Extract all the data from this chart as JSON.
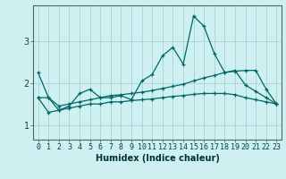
{
  "title": "",
  "xlabel": "Humidex (Indice chaleur)",
  "bg_color": "#cef0f0",
  "grid_color": "#aed8d8",
  "line_color": "#006666",
  "x_ticks": [
    0,
    1,
    2,
    3,
    4,
    5,
    6,
    7,
    8,
    9,
    10,
    11,
    12,
    13,
    14,
    15,
    16,
    17,
    18,
    19,
    20,
    21,
    22,
    23
  ],
  "y_ticks": [
    1,
    2,
    3
  ],
  "ylim": [
    0.65,
    3.85
  ],
  "xlim": [
    -0.5,
    23.5
  ],
  "series1_x": [
    0,
    1,
    2,
    3,
    4,
    5,
    6,
    7,
    8,
    9,
    10,
    11,
    12,
    13,
    14,
    15,
    16,
    17,
    18,
    19,
    20,
    21,
    22,
    23
  ],
  "series1_y": [
    2.25,
    1.65,
    1.35,
    1.45,
    1.75,
    1.85,
    1.65,
    1.65,
    1.7,
    1.6,
    2.05,
    2.2,
    2.65,
    2.85,
    2.45,
    3.6,
    3.35,
    2.7,
    2.25,
    2.3,
    1.95,
    1.8,
    1.65,
    1.5
  ],
  "series2_x": [
    0,
    1,
    2,
    3,
    4,
    5,
    6,
    7,
    8,
    9,
    10,
    11,
    12,
    13,
    14,
    15,
    16,
    17,
    18,
    19,
    20,
    21,
    22,
    23
  ],
  "series2_y": [
    1.65,
    1.65,
    1.45,
    1.5,
    1.55,
    1.6,
    1.65,
    1.7,
    1.72,
    1.75,
    1.78,
    1.82,
    1.87,
    1.92,
    1.97,
    2.05,
    2.12,
    2.18,
    2.25,
    2.28,
    2.3,
    2.3,
    1.85,
    1.5
  ],
  "series3_x": [
    0,
    1,
    2,
    3,
    4,
    5,
    6,
    7,
    8,
    9,
    10,
    11,
    12,
    13,
    14,
    15,
    16,
    17,
    18,
    19,
    20,
    21,
    22,
    23
  ],
  "series3_y": [
    1.65,
    1.3,
    1.35,
    1.4,
    1.45,
    1.5,
    1.5,
    1.55,
    1.55,
    1.58,
    1.6,
    1.62,
    1.65,
    1.68,
    1.7,
    1.73,
    1.75,
    1.75,
    1.75,
    1.72,
    1.65,
    1.6,
    1.55,
    1.5
  ],
  "tick_fontsize": 6,
  "xlabel_fontsize": 7
}
